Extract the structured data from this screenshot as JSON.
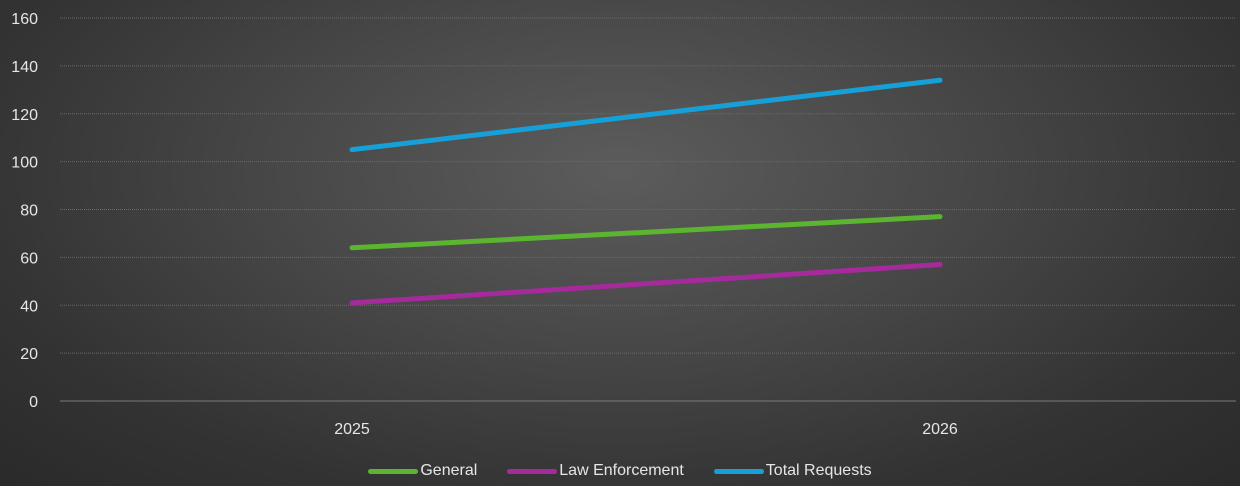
{
  "chart_data": {
    "type": "line",
    "title": "",
    "xlabel": "",
    "ylabel": "",
    "categories": [
      "2025",
      "2026"
    ],
    "ylim": [
      0,
      160
    ],
    "yticks": [
      0,
      20,
      40,
      60,
      80,
      100,
      120,
      140,
      160
    ],
    "grid": true,
    "legend_position": "bottom",
    "series": [
      {
        "name": "General",
        "values": [
          64,
          77
        ],
        "color": "#5cb531"
      },
      {
        "name": "Law Enforcement",
        "values": [
          41,
          57
        ],
        "color": "#a52a9b"
      },
      {
        "name": "Total Requests",
        "values": [
          105,
          134
        ],
        "color": "#17a0d8"
      }
    ]
  },
  "legend": {
    "items": [
      "General",
      "Law Enforcement",
      "Total Requests"
    ]
  }
}
